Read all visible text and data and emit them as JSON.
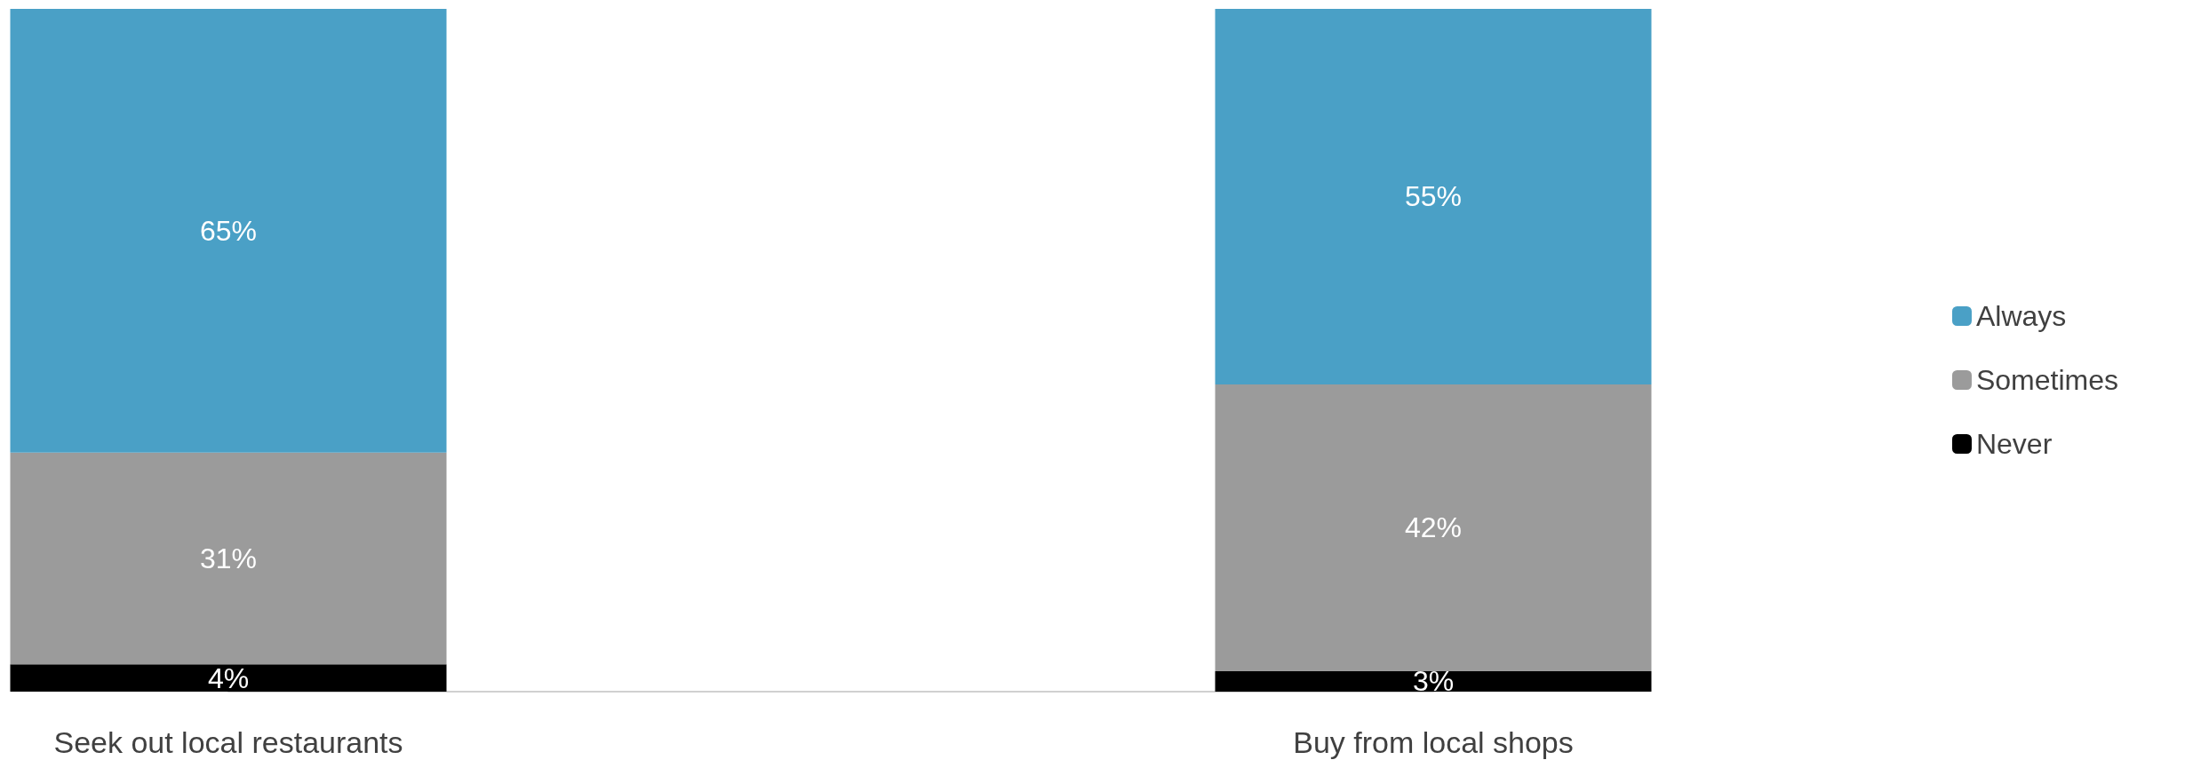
{
  "chart_data": {
    "type": "bar",
    "stacked": true,
    "categories": [
      "Seek out local restaurants",
      "Buy from local shops"
    ],
    "series": [
      {
        "name": "Never",
        "color": "#000000",
        "values": [
          4,
          3
        ],
        "value_labels": [
          "4%",
          "3%"
        ]
      },
      {
        "name": "Sometimes",
        "color": "#9b9b9b",
        "values": [
          31,
          42
        ],
        "value_labels": [
          "31%",
          "42%"
        ]
      },
      {
        "name": "Always",
        "color": "#4aa0c6",
        "values": [
          65,
          55
        ],
        "value_labels": [
          "65%",
          "55%"
        ]
      }
    ],
    "legend": "right"
  }
}
